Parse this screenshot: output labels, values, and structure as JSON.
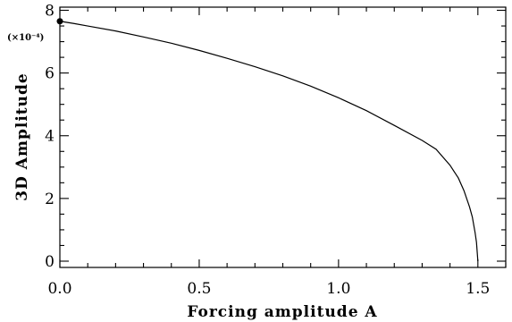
{
  "chart_data": {
    "type": "line",
    "title": "",
    "xlabel": "Forcing amplitude A",
    "ylabel": "3D Amplitude",
    "y_scale_note": "(×10⁻⁴)",
    "xlim": [
      0.0,
      1.6
    ],
    "ylim": [
      -0.2,
      8.1
    ],
    "x_ticks": [
      0.0,
      0.5,
      1.0,
      1.5
    ],
    "x_tick_labels": [
      "0.0",
      "0.5",
      "1.0",
      "1.5"
    ],
    "x_minor_step": 0.1,
    "y_ticks": [
      0,
      2,
      4,
      6,
      8
    ],
    "y_tick_labels": [
      "0",
      "2",
      "4",
      "6",
      "8"
    ],
    "y_minor_step": 0.5,
    "grid": false,
    "series": [
      {
        "x": [
          0.0,
          0.05,
          0.1,
          0.2,
          0.3,
          0.4,
          0.5,
          0.6,
          0.7,
          0.8,
          0.9,
          1.0,
          1.1,
          1.2,
          1.3,
          1.35,
          1.4,
          1.43,
          1.45,
          1.47,
          1.48,
          1.49,
          1.495,
          1.5
        ],
        "y": [
          7.65,
          7.58,
          7.5,
          7.34,
          7.15,
          6.95,
          6.72,
          6.47,
          6.2,
          5.91,
          5.58,
          5.21,
          4.8,
          4.33,
          3.85,
          3.57,
          3.06,
          2.65,
          2.25,
          1.73,
          1.41,
          0.91,
          0.6,
          0.0
        ]
      }
    ],
    "markers": [
      {
        "x": 0.0,
        "y": 7.65
      }
    ]
  }
}
